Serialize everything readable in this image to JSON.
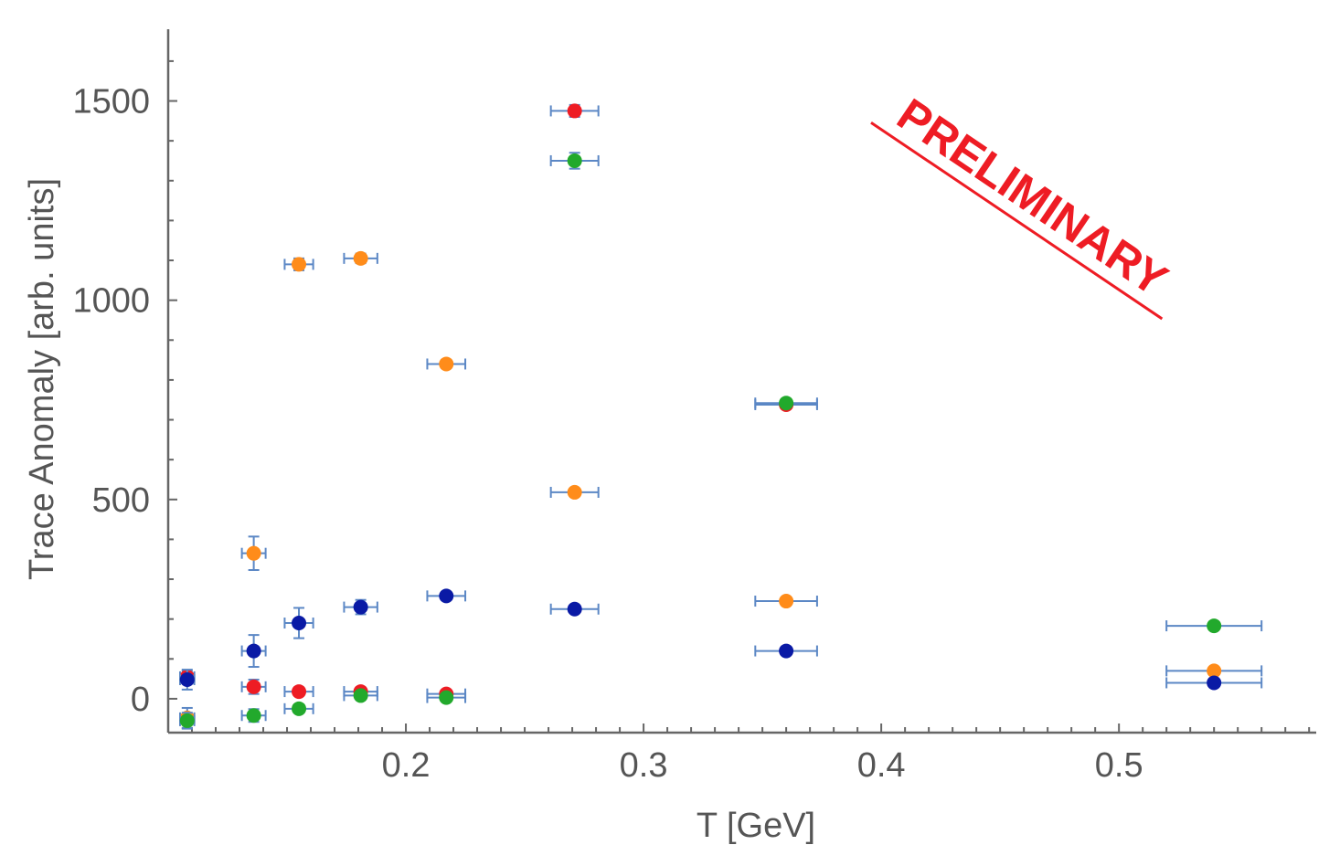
{
  "chart_data": {
    "type": "scatter",
    "title": "",
    "xlabel": "T [GeV]",
    "ylabel": "Trace Anomaly [arb. units]",
    "xlim": [
      0.1,
      0.583
    ],
    "ylim": [
      -85,
      1680
    ],
    "xticks_major": [
      0.2,
      0.3,
      0.4,
      0.5
    ],
    "xtick_labels": [
      "0.2",
      "0.3",
      "0.4",
      "0.5"
    ],
    "yticks_major": [
      0,
      500,
      1000,
      1500
    ],
    "ytick_labels": [
      "0",
      "500",
      "1000",
      "1500"
    ],
    "grid": false,
    "annotation": "PRELIMINARY",
    "error_bar_color": "#5b87c5",
    "series": [
      {
        "name": "orange",
        "color": "#ff8c1a",
        "points": [
          {
            "x": 0.108,
            "y": -48,
            "xerr": 0.003,
            "yerr": 25
          },
          {
            "x": 0.136,
            "y": 365,
            "xerr": 0.005,
            "yerr": 42
          },
          {
            "x": 0.155,
            "y": 1090,
            "xerr": 0.006,
            "yerr": 15
          },
          {
            "x": 0.181,
            "y": 1105,
            "xerr": 0.007,
            "yerr": 12
          },
          {
            "x": 0.217,
            "y": 840,
            "xerr": 0.008,
            "yerr": 10
          },
          {
            "x": 0.271,
            "y": 518,
            "xerr": 0.01,
            "yerr": 8
          },
          {
            "x": 0.36,
            "y": 245,
            "xerr": 0.013,
            "yerr": 6
          },
          {
            "x": 0.54,
            "y": 70,
            "xerr": 0.02,
            "yerr": 5
          }
        ]
      },
      {
        "name": "red",
        "color": "#ee1c24",
        "points": [
          {
            "x": 0.108,
            "y": 55,
            "xerr": 0.003,
            "yerr": 15
          },
          {
            "x": 0.136,
            "y": 30,
            "xerr": 0.005,
            "yerr": 18
          },
          {
            "x": 0.155,
            "y": 18,
            "xerr": 0.006,
            "yerr": 10
          },
          {
            "x": 0.181,
            "y": 18,
            "xerr": 0.007,
            "yerr": 8
          },
          {
            "x": 0.217,
            "y": 12,
            "xerr": 0.008,
            "yerr": 6
          },
          {
            "x": 0.271,
            "y": 1475,
            "xerr": 0.01,
            "yerr": 15
          },
          {
            "x": 0.36,
            "y": 738,
            "xerr": 0.013,
            "yerr": 6
          }
        ]
      },
      {
        "name": "green",
        "color": "#22a92c",
        "points": [
          {
            "x": 0.108,
            "y": -55,
            "xerr": 0.003,
            "yerr": 20
          },
          {
            "x": 0.136,
            "y": -42,
            "xerr": 0.005,
            "yerr": 16
          },
          {
            "x": 0.155,
            "y": -25,
            "xerr": 0.006,
            "yerr": 10
          },
          {
            "x": 0.181,
            "y": 8,
            "xerr": 0.007,
            "yerr": 8
          },
          {
            "x": 0.217,
            "y": 3,
            "xerr": 0.008,
            "yerr": 6
          },
          {
            "x": 0.271,
            "y": 1350,
            "xerr": 0.01,
            "yerr": 20
          },
          {
            "x": 0.36,
            "y": 742,
            "xerr": 0.013,
            "yerr": 6
          },
          {
            "x": 0.54,
            "y": 183,
            "xerr": 0.02,
            "yerr": 5
          }
        ]
      },
      {
        "name": "blue",
        "color": "#0a1aa5",
        "points": [
          {
            "x": 0.108,
            "y": 48,
            "xerr": 0.003,
            "yerr": 25
          },
          {
            "x": 0.136,
            "y": 120,
            "xerr": 0.005,
            "yerr": 40
          },
          {
            "x": 0.155,
            "y": 190,
            "xerr": 0.006,
            "yerr": 38
          },
          {
            "x": 0.181,
            "y": 230,
            "xerr": 0.007,
            "yerr": 18
          },
          {
            "x": 0.217,
            "y": 258,
            "xerr": 0.008,
            "yerr": 10
          },
          {
            "x": 0.271,
            "y": 225,
            "xerr": 0.01,
            "yerr": 8
          },
          {
            "x": 0.36,
            "y": 120,
            "xerr": 0.013,
            "yerr": 6
          },
          {
            "x": 0.54,
            "y": 40,
            "xerr": 0.02,
            "yerr": 5
          }
        ]
      }
    ]
  }
}
